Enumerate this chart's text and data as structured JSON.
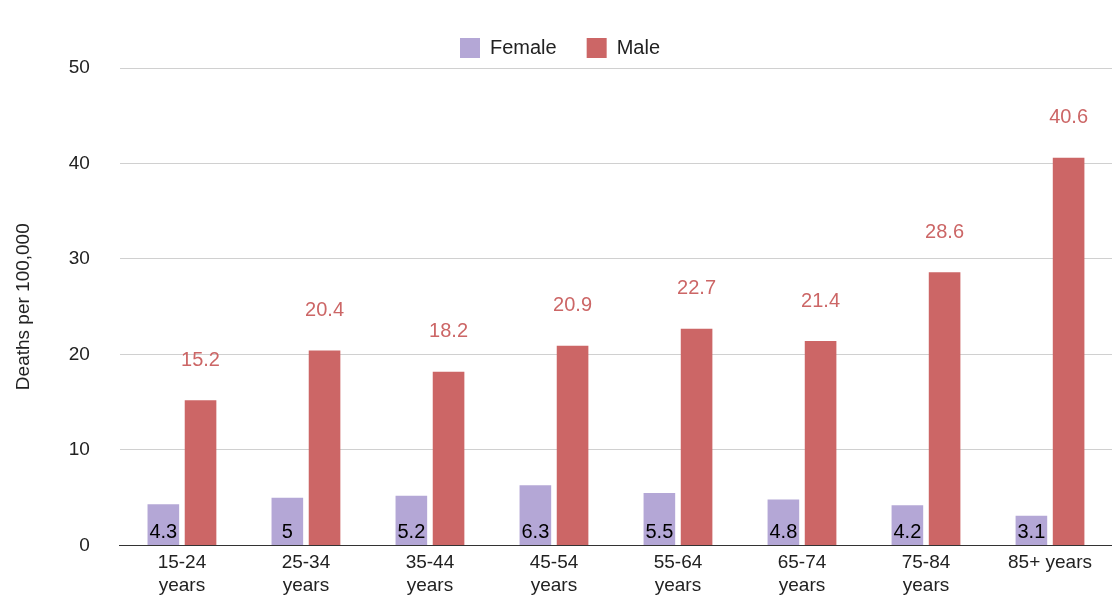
{
  "chart_data": {
    "type": "bar",
    "ylabel": "Deaths per 100,000",
    "categories": [
      "15-24 years",
      "25-34 years",
      "35-44 years",
      "45-54 years",
      "55-64 years",
      "65-74 years",
      "75-84 years",
      "85+ years"
    ],
    "series": [
      {
        "name": "Female",
        "color": "#b4a7d6",
        "values": [
          4.3,
          5,
          5.2,
          6.3,
          5.5,
          4.8,
          4.2,
          3.1
        ]
      },
      {
        "name": "Male",
        "color": "#cc6666",
        "values": [
          15.2,
          20.4,
          18.2,
          20.9,
          22.7,
          21.4,
          28.6,
          40.6
        ]
      }
    ],
    "ylim": [
      0,
      50
    ],
    "yticks": [
      0,
      10,
      20,
      30,
      40,
      50
    ],
    "grid": "y",
    "legend": "top",
    "data_labels": true
  }
}
